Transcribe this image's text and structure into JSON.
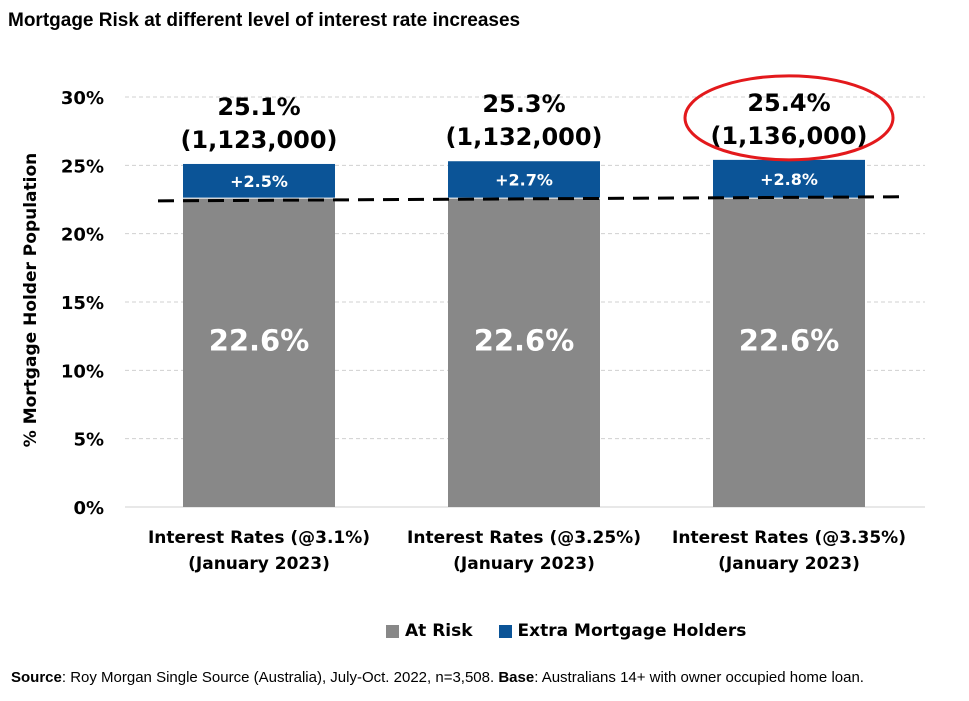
{
  "title": "Mortgage Risk at different level of interest rate increases",
  "chart_data": {
    "type": "bar",
    "stacked": true,
    "title": "Mortgage Risk at different level of interest rate increases",
    "ylabel": "% Mortgage Holder Population",
    "xlabel": "",
    "ylim": [
      0,
      30
    ],
    "yticks": [
      "0%",
      "5%",
      "10%",
      "15%",
      "20%",
      "25%",
      "30%"
    ],
    "categories": [
      [
        "Interest Rates (@3.1%)",
        "(January 2023)"
      ],
      [
        "Interest Rates (@3.25%)",
        "(January 2023)"
      ],
      [
        "Interest Rates (@3.35%)",
        "(January 2023)"
      ]
    ],
    "series": [
      {
        "name": "At Risk",
        "color": "#888888",
        "values": [
          22.6,
          22.6,
          22.6
        ],
        "labels": [
          "22.6%",
          "22.6%",
          "22.6%"
        ]
      },
      {
        "name": "Extra Mortgage Holders",
        "color": "#0b5497",
        "values": [
          2.5,
          2.7,
          2.8
        ],
        "labels": [
          "+2.5%",
          "+2.7%",
          "+2.8%"
        ]
      }
    ],
    "totals": [
      {
        "pct": "25.1%",
        "count": "(1,123,000)",
        "highlighted": false
      },
      {
        "pct": "25.3%",
        "count": "(1,132,000)",
        "highlighted": false
      },
      {
        "pct": "25.4%",
        "count": "(1,136,000)",
        "highlighted": true
      }
    ],
    "trend_line": {
      "style": "dashed",
      "from": 22.4,
      "to": 22.7
    }
  },
  "legend": [
    {
      "label": "At Risk",
      "color": "#888888"
    },
    {
      "label": "Extra Mortgage Holders",
      "color": "#0b5497"
    }
  ],
  "footer": {
    "source_label": "Source",
    "source_text": ": Roy Morgan Single Source (Australia), July-Oct. 2022, n=3,508. ",
    "base_label": "Base",
    "base_text": ": Australians 14+ with owner occupied home loan."
  }
}
